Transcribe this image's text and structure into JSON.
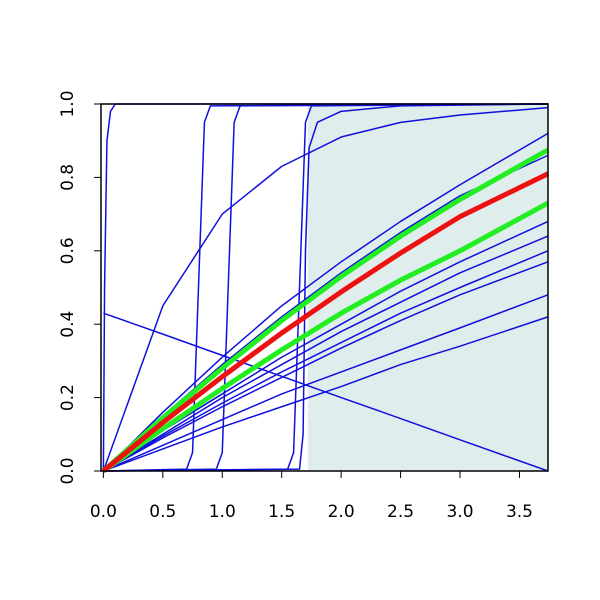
{
  "chart_data": {
    "type": "line",
    "xlim": [
      -0.02,
      3.74
    ],
    "ylim": [
      0,
      1
    ],
    "xticks": [
      {
        "value": 0,
        "label": "0.0"
      },
      0.5,
      {
        "value": 1,
        "label": "1.0"
      },
      1.5,
      {
        "value": 2,
        "label": "2.0"
      },
      2.5,
      {
        "value": 3,
        "label": "3.0"
      },
      3.5
    ],
    "yticks": [
      {
        "value": 0,
        "label": "0.0"
      },
      0.2,
      0.4,
      0.6,
      0.8,
      {
        "value": 1,
        "label": "1.0"
      }
    ],
    "shade": {
      "xlim": [
        1.72,
        3.74
      ],
      "color": "#e0eded"
    },
    "series": [
      {
        "color": "#1010dd",
        "width": 1.5,
        "x": [
          0,
          0.01,
          0.03,
          0.06,
          0.1,
          3.74
        ],
        "values": [
          0,
          0.5,
          0.9,
          0.98,
          1,
          1
        ]
      },
      {
        "color": "#1010dd",
        "width": 1.5,
        "x": [
          0,
          0.7,
          0.75,
          0.8,
          0.85,
          0.9,
          3.74
        ],
        "values": [
          0,
          0.005,
          0.05,
          0.5,
          0.95,
          0.995,
          1
        ]
      },
      {
        "color": "#1010dd",
        "width": 1.5,
        "x": [
          0,
          0.95,
          1.0,
          1.05,
          1.1,
          1.15,
          3.74
        ],
        "values": [
          0,
          0.005,
          0.05,
          0.5,
          0.95,
          0.995,
          1
        ]
      },
      {
        "color": "#1010dd",
        "width": 1.5,
        "x": [
          0,
          1.55,
          1.6,
          1.65,
          1.7,
          1.75,
          3.74
        ],
        "values": [
          0,
          0.005,
          0.05,
          0.5,
          0.95,
          0.995,
          1
        ]
      },
      {
        "color": "#1010dd",
        "width": 1.5,
        "x": [
          0,
          1.65,
          1.68,
          1.7,
          1.73,
          1.8,
          2.0,
          2.5,
          3.74
        ],
        "values": [
          0,
          0.005,
          0.1,
          0.6,
          0.88,
          0.95,
          0.98,
          0.995,
          1
        ]
      },
      {
        "color": "#1010dd",
        "width": 1.5,
        "x": [
          0,
          0.5,
          1,
          1.5,
          2,
          2.5,
          3,
          3.74
        ],
        "values": [
          0,
          0.45,
          0.7,
          0.83,
          0.91,
          0.95,
          0.97,
          0.99
        ]
      },
      {
        "color": "#1010dd",
        "width": 1.5,
        "x": [
          0,
          0.5,
          1,
          1.5,
          2,
          2.5,
          3,
          3.74
        ],
        "values": [
          0.43,
          0.373,
          0.315,
          0.258,
          0.2,
          0.143,
          0.085,
          0
        ]
      },
      {
        "color": "#1010dd",
        "width": 1.5,
        "x": [
          0,
          0.5,
          1,
          1.5,
          2,
          2.5,
          3,
          3.74
        ],
        "values": [
          0,
          0.16,
          0.31,
          0.45,
          0.57,
          0.68,
          0.78,
          0.92
        ]
      },
      {
        "color": "#1010dd",
        "width": 1.5,
        "x": [
          0,
          0.5,
          1,
          1.5,
          2,
          2.5,
          3,
          3.74
        ],
        "values": [
          0,
          0.15,
          0.29,
          0.42,
          0.54,
          0.65,
          0.75,
          0.86
        ]
      },
      {
        "color": "#1010dd",
        "width": 1.5,
        "x": [
          0,
          0.5,
          1,
          1.5,
          2,
          2.5,
          3,
          3.74
        ],
        "values": [
          0,
          0.11,
          0.21,
          0.31,
          0.4,
          0.49,
          0.57,
          0.68
        ]
      },
      {
        "color": "#1010dd",
        "width": 1.5,
        "x": [
          0,
          0.5,
          1,
          1.5,
          2,
          2.5,
          3,
          3.74
        ],
        "values": [
          0,
          0.1,
          0.2,
          0.29,
          0.38,
          0.46,
          0.54,
          0.64
        ]
      },
      {
        "color": "#1010dd",
        "width": 1.5,
        "x": [
          0,
          0.5,
          1,
          1.5,
          2,
          2.5,
          3,
          3.74
        ],
        "values": [
          0,
          0.095,
          0.185,
          0.27,
          0.35,
          0.43,
          0.5,
          0.6
        ]
      },
      {
        "color": "#1010dd",
        "width": 1.5,
        "x": [
          0,
          0.5,
          1,
          1.5,
          2,
          2.5,
          3,
          3.74
        ],
        "values": [
          0,
          0.09,
          0.175,
          0.255,
          0.335,
          0.41,
          0.48,
          0.57
        ]
      },
      {
        "color": "#1010dd",
        "width": 1.5,
        "x": [
          0,
          0.5,
          1,
          1.5,
          2,
          2.5,
          3,
          3.74
        ],
        "values": [
          0,
          0.07,
          0.14,
          0.21,
          0.27,
          0.33,
          0.39,
          0.48
        ]
      },
      {
        "color": "#1010dd",
        "width": 1.5,
        "x": [
          0,
          0.5,
          1,
          1.5,
          2,
          2.5,
          3,
          3.74
        ],
        "values": [
          0,
          0.06,
          0.12,
          0.175,
          0.23,
          0.29,
          0.34,
          0.42
        ]
      },
      {
        "color": "#22ee22",
        "width": 5,
        "x": [
          0,
          0.5,
          1,
          1.5,
          2,
          2.5,
          3,
          3.74
        ],
        "values": [
          0,
          0.145,
          0.28,
          0.41,
          0.53,
          0.64,
          0.74,
          0.875
        ]
      },
      {
        "color": "#22ee22",
        "width": 5,
        "x": [
          0,
          0.5,
          1,
          1.5,
          2,
          2.5,
          3,
          3.74
        ],
        "values": [
          0,
          0.115,
          0.225,
          0.33,
          0.43,
          0.52,
          0.6,
          0.73
        ]
      },
      {
        "color": "#ee1111",
        "width": 5,
        "x": [
          0,
          0.5,
          1,
          1.5,
          2,
          2.5,
          3,
          3.74
        ],
        "values": [
          0,
          0.132,
          0.257,
          0.376,
          0.488,
          0.594,
          0.693,
          0.81
        ]
      }
    ]
  }
}
